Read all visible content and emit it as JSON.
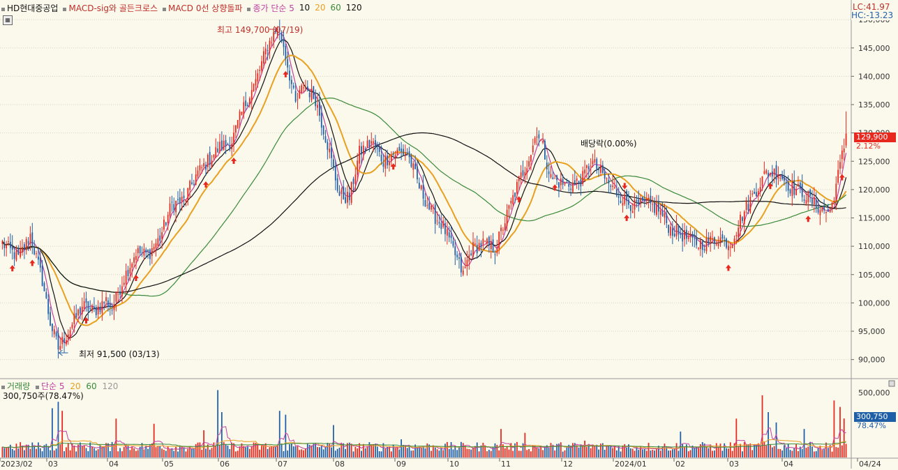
{
  "header": {
    "stock_name": "HD현대중공업",
    "indicator1": "MACD-sig와 골든크로스",
    "indicator2": "MACD 0선 상향돌파",
    "ma_label": "종가 단순 5",
    "ma10": "10",
    "ma20": "20",
    "ma60": "60",
    "ma120": "120"
  },
  "top_right": {
    "lc": "LC:41.97",
    "hc": "HC:-13.23"
  },
  "price_tag": {
    "value": "129,900",
    "change": "2.12%"
  },
  "volume_header": {
    "title": "거래량",
    "ma_label": "단순 5",
    "ma20": "20",
    "ma60": "60",
    "ma120": "120"
  },
  "volume_value_label": "300,750주(78.47%)",
  "volume_tag": {
    "value": "300,750",
    "pct": "78.47%"
  },
  "annotations": {
    "high": "최고 149,700 (07/19)",
    "low": "최저 91,500 (03/13)",
    "dividend": "배당락(0.00%)"
  },
  "colors": {
    "up": "#e8281e",
    "down": "#1f5fa8",
    "ma5": "#c040a0",
    "ma10": "#111111",
    "ma20": "#e8a020",
    "ma60": "#3a8a3a",
    "ma120": "#111111",
    "grid": "#d9d4c0"
  },
  "chart_data": {
    "type": "candlestick",
    "price_axis": {
      "ticks": [
        "150,000",
        "145,000",
        "140,000",
        "135,000",
        "130,000",
        "125,000",
        "120,000",
        "115,000",
        "110,000",
        "105,000",
        "100,000",
        "95,000",
        "90,000"
      ],
      "range": [
        87000,
        151000
      ]
    },
    "volume_axis": {
      "ticks": [
        "500,000"
      ],
      "range": [
        0,
        560000
      ]
    },
    "x_labels": [
      "2023/02",
      "03",
      "04",
      "05",
      "06",
      "07",
      "08",
      "09",
      "10",
      "11",
      "12",
      "2024/01",
      "02",
      "03",
      "04",
      "04/24"
    ],
    "ma_periods": [
      5,
      10,
      20,
      60,
      120
    ],
    "anchors": [
      [
        0,
        110500
      ],
      [
        8,
        108000
      ],
      [
        12,
        110500
      ],
      [
        14,
        112000
      ],
      [
        20,
        104000
      ],
      [
        24,
        96500
      ],
      [
        28,
        92000
      ],
      [
        34,
        95500
      ],
      [
        40,
        99500
      ],
      [
        46,
        98500
      ],
      [
        52,
        100500
      ],
      [
        55,
        99000
      ],
      [
        61,
        104500
      ],
      [
        67,
        109000
      ],
      [
        73,
        108500
      ],
      [
        79,
        111500
      ],
      [
        85,
        117500
      ],
      [
        91,
        118000
      ],
      [
        97,
        122500
      ],
      [
        103,
        125000
      ],
      [
        109,
        127500
      ],
      [
        115,
        128500
      ],
      [
        121,
        134500
      ],
      [
        127,
        139000
      ],
      [
        133,
        145500
      ],
      [
        138,
        148500
      ],
      [
        141,
        145500
      ],
      [
        147,
        135000
      ],
      [
        151,
        138500
      ],
      [
        157,
        136000
      ],
      [
        163,
        128000
      ],
      [
        169,
        119000
      ],
      [
        174,
        118500
      ],
      [
        179,
        126500
      ],
      [
        185,
        128500
      ],
      [
        191,
        125000
      ],
      [
        197,
        126500
      ],
      [
        203,
        126500
      ],
      [
        209,
        120500
      ],
      [
        215,
        116000
      ],
      [
        221,
        113500
      ],
      [
        227,
        108500
      ],
      [
        231,
        105000
      ],
      [
        235,
        109500
      ],
      [
        241,
        110500
      ],
      [
        247,
        109500
      ],
      [
        253,
        115500
      ],
      [
        259,
        121500
      ],
      [
        265,
        126500
      ],
      [
        268,
        130500
      ],
      [
        271,
        127500
      ],
      [
        275,
        122000
      ],
      [
        281,
        121000
      ],
      [
        287,
        121000
      ],
      [
        291,
        122000
      ],
      [
        295,
        125000
      ],
      [
        299,
        123500
      ],
      [
        305,
        120500
      ],
      [
        311,
        118500
      ],
      [
        317,
        117000
      ],
      [
        323,
        117500
      ],
      [
        329,
        116500
      ],
      [
        335,
        113000
      ],
      [
        341,
        112000
      ],
      [
        347,
        110500
      ],
      [
        353,
        110500
      ],
      [
        359,
        111500
      ],
      [
        365,
        110500
      ],
      [
        371,
        115500
      ],
      [
        377,
        119500
      ],
      [
        383,
        123000
      ],
      [
        389,
        123000
      ],
      [
        395,
        120500
      ],
      [
        401,
        119500
      ],
      [
        407,
        117500
      ],
      [
        411,
        116500
      ],
      [
        415,
        116000
      ],
      [
        419,
        122500
      ],
      [
        423,
        129300
      ]
    ],
    "volume_spikes": [
      [
        25,
        380000
      ],
      [
        28,
        430000
      ],
      [
        30,
        360000
      ],
      [
        57,
        300000
      ],
      [
        76,
        260000
      ],
      [
        101,
        210000
      ],
      [
        108,
        520000
      ],
      [
        110,
        350000
      ],
      [
        139,
        360000
      ],
      [
        142,
        330000
      ],
      [
        166,
        250000
      ],
      [
        200,
        140000
      ],
      [
        250,
        220000
      ],
      [
        262,
        190000
      ],
      [
        292,
        130000
      ],
      [
        340,
        200000
      ],
      [
        368,
        300000
      ],
      [
        381,
        480000
      ],
      [
        384,
        350000
      ],
      [
        388,
        270000
      ],
      [
        402,
        220000
      ],
      [
        417,
        440000
      ],
      [
        420,
        390000
      ],
      [
        422,
        300750
      ]
    ],
    "markers_up": [
      5,
      15,
      42,
      67,
      102,
      116,
      142,
      196,
      259,
      277,
      313,
      364,
      385,
      404,
      421
    ],
    "markers_down": [
      312
    ]
  }
}
